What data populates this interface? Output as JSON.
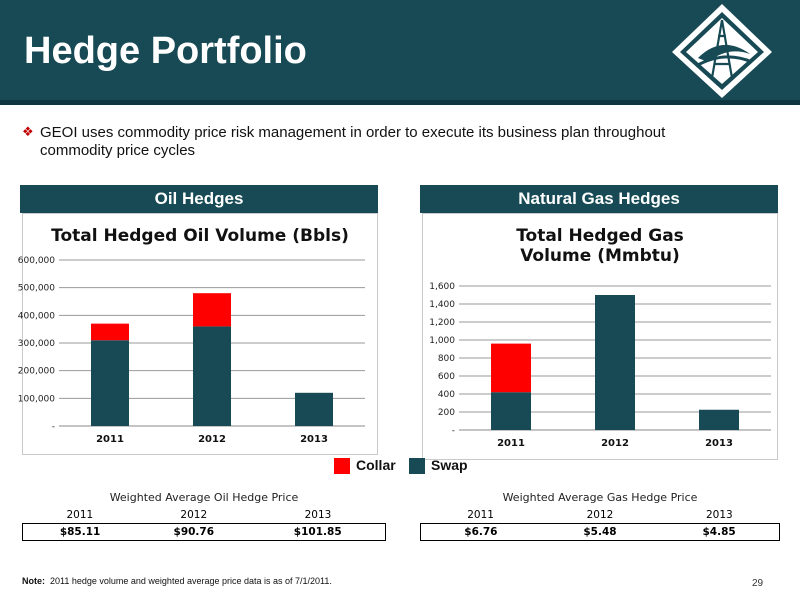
{
  "header": {
    "title": "Hedge Portfolio"
  },
  "bullet": {
    "text": "GEOI uses commodity price risk management in order to execute its business plan throughout commodity price cycles"
  },
  "oil_section": {
    "label": "Oil Hedges"
  },
  "gas_section": {
    "label": "Natural Gas Hedges"
  },
  "legend": {
    "items": [
      {
        "label": "Collar",
        "color": "#FF0000"
      },
      {
        "label": "Swap",
        "color": "#174A55"
      }
    ]
  },
  "oil_price": {
    "title": "Weighted Average Oil Hedge Price",
    "years": [
      "2011",
      "2012",
      "2013"
    ],
    "values": [
      "$85.11",
      "$90.76",
      "$101.85"
    ]
  },
  "gas_price": {
    "title": "Weighted Average Gas Hedge Price",
    "years": [
      "2011",
      "2012",
      "2013"
    ],
    "values": [
      "$6.76",
      "$5.48",
      "$4.85"
    ]
  },
  "footer": {
    "note_label": "Note:",
    "note_text": "2011 hedge volume and weighted average price data is as of 7/1/2011.",
    "page_number": "29"
  },
  "colors": {
    "header": "#174A55",
    "swap": "#174A55",
    "collar": "#FF0000"
  },
  "chart_data": [
    {
      "type": "bar",
      "stacked": true,
      "title": "Total Hedged Oil Volume (Bbls)",
      "categories": [
        "2011",
        "2012",
        "2013"
      ],
      "series": [
        {
          "name": "Swap",
          "values": [
            310000,
            360000,
            120000
          ]
        },
        {
          "name": "Collar",
          "values": [
            60000,
            120000,
            0
          ]
        }
      ],
      "ylim": [
        0,
        600000
      ],
      "yticks": [
        "-",
        "100,000",
        "200,000",
        "300,000",
        "400,000",
        "500,000",
        "600,000"
      ],
      "grid": true
    },
    {
      "type": "bar",
      "stacked": true,
      "title": "Total Hedged Gas Volume (Mmbtu)",
      "categories": [
        "2011",
        "2012",
        "2013"
      ],
      "series": [
        {
          "name": "Swap",
          "values": [
            420,
            1500,
            225
          ]
        },
        {
          "name": "Collar",
          "values": [
            540,
            0,
            0
          ]
        }
      ],
      "ylim": [
        0,
        1600
      ],
      "yticks": [
        "-",
        "200",
        "400",
        "600",
        "800",
        "1,000",
        "1,200",
        "1,400",
        "1,600"
      ],
      "grid": true
    }
  ]
}
